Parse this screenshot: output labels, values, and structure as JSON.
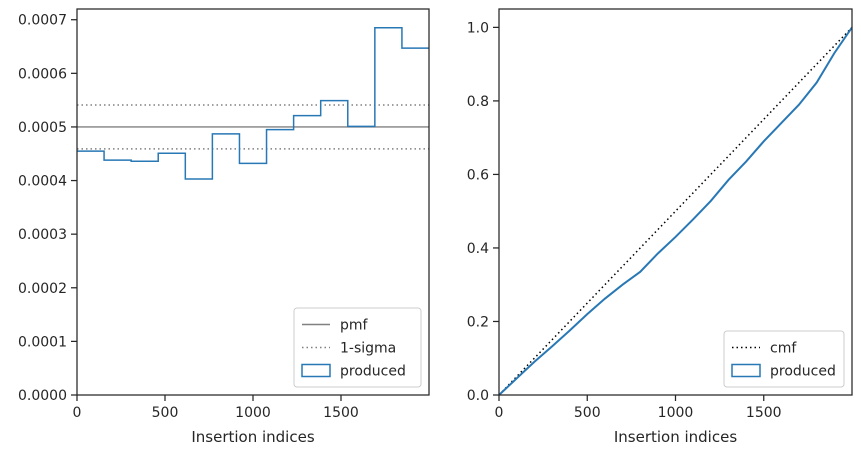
{
  "chart_data": [
    {
      "type": "step",
      "xlabel": "Insertion indices",
      "ylabel": "",
      "xlim": [
        0,
        2000
      ],
      "ylim": [
        0,
        0.00072
      ],
      "xticks": [
        0,
        500,
        1000,
        1500
      ],
      "xtick_labels": [
        "0",
        "500",
        "1000",
        "1500"
      ],
      "yticks": [
        0,
        0.0001,
        0.0002,
        0.0003,
        0.0004,
        0.0005,
        0.0006,
        0.0007
      ],
      "ytick_labels": [
        "0.0000",
        "0.0001",
        "0.0002",
        "0.0003",
        "0.0004",
        "0.0005",
        "0.0006",
        "0.0007"
      ],
      "legend_position": "lower right",
      "lines": [
        {
          "name": "pmf",
          "y": 0.0005,
          "color": "#808080",
          "style": "solid"
        },
        {
          "name": "1-sigma",
          "y": [
            0.000459,
            0.000541
          ],
          "color": "#808080",
          "style": "dotted"
        }
      ],
      "histogram": {
        "name": "produced",
        "color": "#2878b5",
        "bin_edges": [
          0,
          153.8,
          307.7,
          461.5,
          615.4,
          769.2,
          923.1,
          1076.9,
          1230.8,
          1384.6,
          1538.5,
          1692.3,
          1846.2,
          2000
        ],
        "values": [
          0.000455,
          0.000438,
          0.000436,
          0.000451,
          0.000403,
          0.000487,
          0.000432,
          0.000495,
          0.000521,
          0.000549,
          0.000501,
          0.000685,
          0.000647
        ]
      },
      "legend": [
        "pmf",
        "1-sigma",
        "produced"
      ]
    },
    {
      "type": "line",
      "xlabel": "Insertion indices",
      "ylabel": "",
      "xlim": [
        0,
        2000
      ],
      "ylim": [
        0,
        1.05
      ],
      "xticks": [
        0,
        500,
        1000,
        1500
      ],
      "xtick_labels": [
        "0",
        "500",
        "1000",
        "1500"
      ],
      "yticks": [
        0,
        0.2,
        0.4,
        0.6,
        0.8,
        1.0
      ],
      "ytick_labels": [
        "0.0",
        "0.2",
        "0.4",
        "0.6",
        "0.8",
        "1.0"
      ],
      "legend_position": "lower right",
      "series": [
        {
          "name": "cmf",
          "color": "#000000",
          "style": "dotted",
          "x": [
            0,
            2000
          ],
          "y": [
            0,
            1
          ]
        },
        {
          "name": "produced",
          "color": "#2878b5",
          "style": "solid",
          "x": [
            0,
            100,
            200,
            300,
            400,
            500,
            600,
            700,
            800,
            900,
            1000,
            1100,
            1200,
            1300,
            1400,
            1500,
            1600,
            1700,
            1800,
            1900,
            2000
          ],
          "y": [
            0,
            0.045,
            0.09,
            0.132,
            0.175,
            0.22,
            0.262,
            0.3,
            0.335,
            0.385,
            0.43,
            0.478,
            0.528,
            0.585,
            0.635,
            0.69,
            0.74,
            0.79,
            0.85,
            0.93,
            1.0
          ]
        }
      ],
      "legend": [
        "cmf",
        "produced"
      ]
    }
  ]
}
